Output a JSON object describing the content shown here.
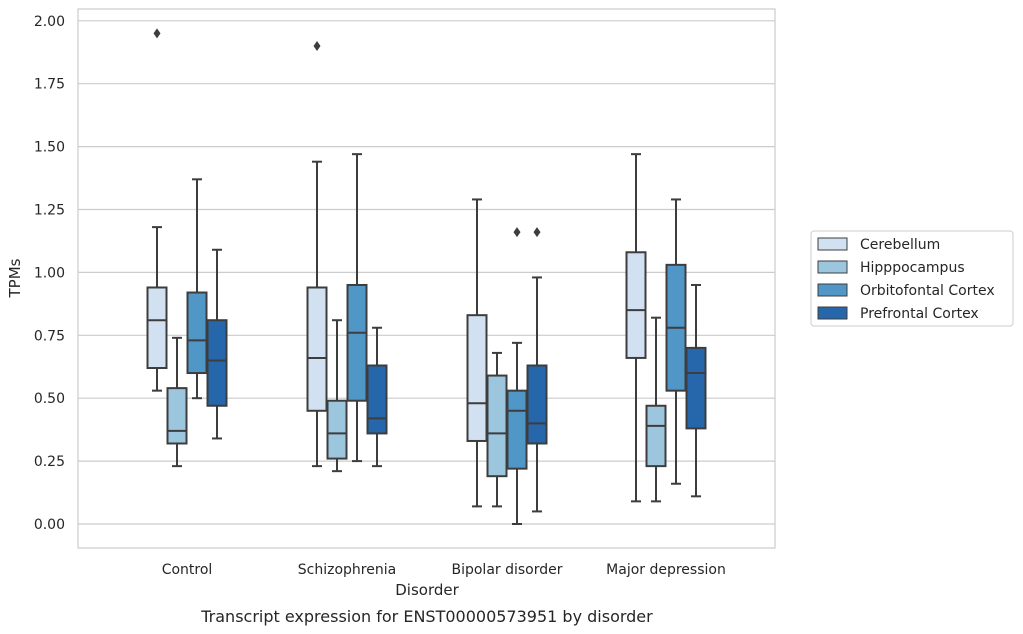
{
  "chart_data": {
    "type": "box",
    "title": "",
    "caption": "Transcript expression for ENST00000573951 by disorder",
    "xlabel": "Disorder",
    "ylabel": "TPMs",
    "ylim": [
      -0.1,
      2.05
    ],
    "yticks": [
      "0.00",
      "0.25",
      "0.50",
      "0.75",
      "1.00",
      "1.25",
      "1.50",
      "1.75",
      "2.00"
    ],
    "grid": "horizontal",
    "legend_position": "right",
    "categories": [
      "Control",
      "Schizophrenia",
      "Bipolar disorder",
      "Major depression"
    ],
    "series": [
      {
        "name": "Cerebellum",
        "color": "#d1e1f1",
        "boxes": [
          {
            "whisker_low": 0.53,
            "q1": 0.62,
            "median": 0.81,
            "q3": 0.94,
            "whisker_high": 1.18,
            "outliers": [
              1.95
            ]
          },
          {
            "whisker_low": 0.23,
            "q1": 0.45,
            "median": 0.66,
            "q3": 0.94,
            "whisker_high": 1.44,
            "outliers": [
              1.9
            ]
          },
          {
            "whisker_low": 0.07,
            "q1": 0.33,
            "median": 0.48,
            "q3": 0.83,
            "whisker_high": 1.29,
            "outliers": []
          },
          {
            "whisker_low": 0.09,
            "q1": 0.66,
            "median": 0.85,
            "q3": 1.08,
            "whisker_high": 1.47,
            "outliers": []
          }
        ]
      },
      {
        "name": "Hipppocampus",
        "color": "#9cc6de",
        "boxes": [
          {
            "whisker_low": 0.23,
            "q1": 0.32,
            "median": 0.37,
            "q3": 0.54,
            "whisker_high": 0.74,
            "outliers": []
          },
          {
            "whisker_low": 0.21,
            "q1": 0.26,
            "median": 0.36,
            "q3": 0.49,
            "whisker_high": 0.81,
            "outliers": []
          },
          {
            "whisker_low": 0.07,
            "q1": 0.19,
            "median": 0.36,
            "q3": 0.59,
            "whisker_high": 0.68,
            "outliers": []
          },
          {
            "whisker_low": 0.09,
            "q1": 0.23,
            "median": 0.39,
            "q3": 0.47,
            "whisker_high": 0.82,
            "outliers": []
          }
        ]
      },
      {
        "name": "Orbitofontal Cortex",
        "color": "#5097c7",
        "boxes": [
          {
            "whisker_low": 0.5,
            "q1": 0.6,
            "median": 0.73,
            "q3": 0.92,
            "whisker_high": 1.37,
            "outliers": []
          },
          {
            "whisker_low": 0.25,
            "q1": 0.49,
            "median": 0.76,
            "q3": 0.95,
            "whisker_high": 1.47,
            "outliers": []
          },
          {
            "whisker_low": 0.0,
            "q1": 0.22,
            "median": 0.45,
            "q3": 0.53,
            "whisker_high": 0.72,
            "outliers": [
              1.16
            ]
          },
          {
            "whisker_low": 0.16,
            "q1": 0.53,
            "median": 0.78,
            "q3": 1.03,
            "whisker_high": 1.29,
            "outliers": []
          }
        ]
      },
      {
        "name": "Prefrontal Cortex",
        "color": "#2666aa",
        "boxes": [
          {
            "whisker_low": 0.34,
            "q1": 0.47,
            "median": 0.65,
            "q3": 0.81,
            "whisker_high": 1.09,
            "outliers": []
          },
          {
            "whisker_low": 0.23,
            "q1": 0.36,
            "median": 0.42,
            "q3": 0.63,
            "whisker_high": 0.78,
            "outliers": []
          },
          {
            "whisker_low": 0.05,
            "q1": 0.32,
            "median": 0.4,
            "q3": 0.63,
            "whisker_high": 0.98,
            "outliers": [
              1.16
            ]
          },
          {
            "whisker_low": 0.11,
            "q1": 0.38,
            "median": 0.6,
            "q3": 0.7,
            "whisker_high": 0.95,
            "outliers": []
          }
        ]
      }
    ]
  }
}
